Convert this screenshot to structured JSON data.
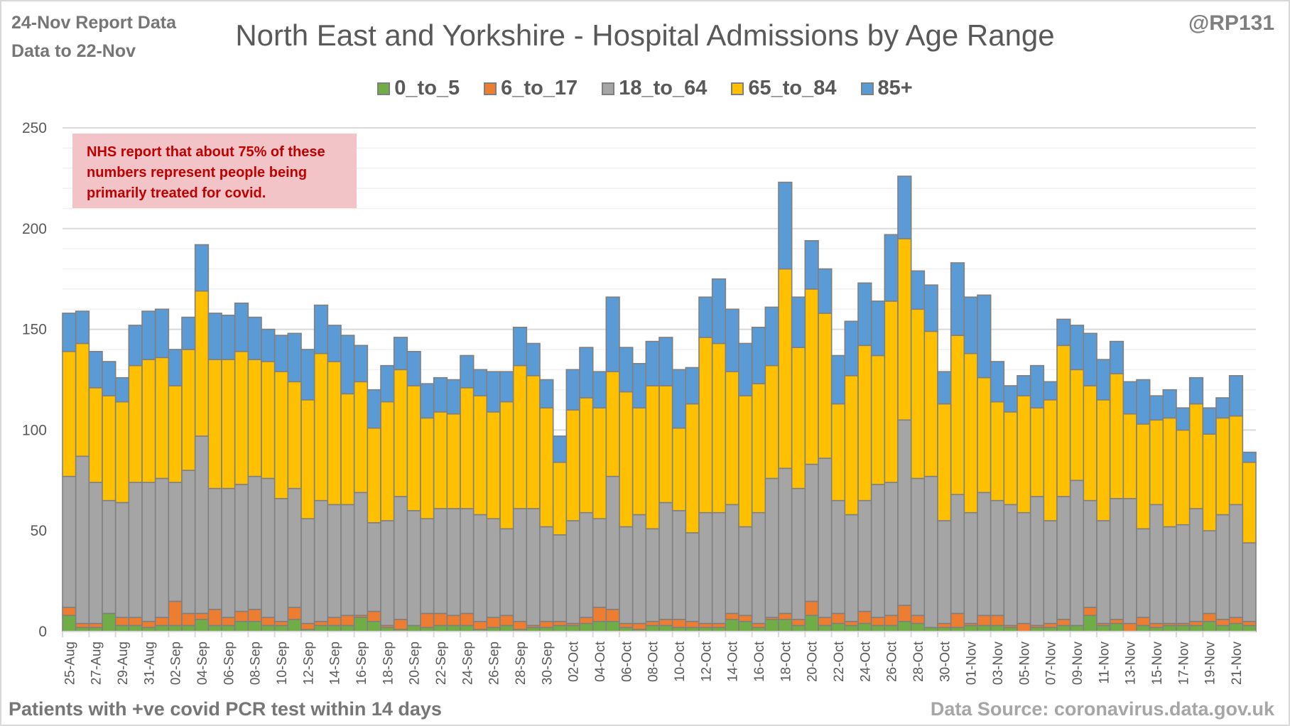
{
  "header": {
    "report_date": "24-Nov Report Data",
    "data_to": "Data to 22-Nov",
    "handle": "@RP131"
  },
  "footer": {
    "left": "Patients with  +ve covid PCR test within 14 days",
    "right": "Data Source: coronavirus.data.gov.uk"
  },
  "annotation": "NHS report that about 75% of these numbers represent people being primarily treated for covid.",
  "chart_data": {
    "type": "bar",
    "stacked": true,
    "title": "North East and Yorkshire - Hospital Admissions by Age Range",
    "xlabel": "",
    "ylabel": "",
    "ylim": [
      0,
      250
    ],
    "yticks": [
      0,
      50,
      100,
      150,
      200,
      250
    ],
    "grid": true,
    "legend_position": "top",
    "x_tick_labels": [
      "25-Aug",
      "27-Aug",
      "29-Aug",
      "31-Aug",
      "02-Sep",
      "04-Sep",
      "06-Sep",
      "08-Sep",
      "10-Sep",
      "12-Sep",
      "14-Sep",
      "16-Sep",
      "18-Sep",
      "20-Sep",
      "22-Sep",
      "24-Sep",
      "26-Sep",
      "28-Sep",
      "30-Sep",
      "02-Oct",
      "04-Oct",
      "06-Oct",
      "08-Oct",
      "10-Oct",
      "12-Oct",
      "14-Oct",
      "16-Oct",
      "18-Oct",
      "20-Oct",
      "22-Oct",
      "24-Oct",
      "26-Oct",
      "28-Oct",
      "30-Oct",
      "01-Nov",
      "03-Nov",
      "05-Nov",
      "07-Nov",
      "09-Nov",
      "11-Nov",
      "13-Nov",
      "15-Nov",
      "17-Nov",
      "19-Nov",
      "21-Nov"
    ],
    "categories": [
      "25-Aug",
      "26-Aug",
      "27-Aug",
      "28-Aug",
      "29-Aug",
      "30-Aug",
      "31-Aug",
      "01-Sep",
      "02-Sep",
      "03-Sep",
      "04-Sep",
      "05-Sep",
      "06-Sep",
      "07-Sep",
      "08-Sep",
      "09-Sep",
      "10-Sep",
      "11-Sep",
      "12-Sep",
      "13-Sep",
      "14-Sep",
      "15-Sep",
      "16-Sep",
      "17-Sep",
      "18-Sep",
      "19-Sep",
      "20-Sep",
      "21-Sep",
      "22-Sep",
      "23-Sep",
      "24-Sep",
      "25-Sep",
      "26-Sep",
      "27-Sep",
      "28-Sep",
      "29-Sep",
      "30-Sep",
      "01-Oct",
      "02-Oct",
      "03-Oct",
      "04-Oct",
      "05-Oct",
      "06-Oct",
      "07-Oct",
      "08-Oct",
      "09-Oct",
      "10-Oct",
      "11-Oct",
      "12-Oct",
      "13-Oct",
      "14-Oct",
      "15-Oct",
      "16-Oct",
      "17-Oct",
      "18-Oct",
      "19-Oct",
      "20-Oct",
      "21-Oct",
      "22-Oct",
      "23-Oct",
      "24-Oct",
      "25-Oct",
      "26-Oct",
      "27-Oct",
      "28-Oct",
      "29-Oct",
      "30-Oct",
      "31-Oct",
      "01-Nov",
      "02-Nov",
      "03-Nov",
      "04-Nov",
      "05-Nov",
      "06-Nov",
      "07-Nov",
      "08-Nov",
      "09-Nov",
      "10-Nov",
      "11-Nov",
      "12-Nov",
      "13-Nov",
      "14-Nov",
      "15-Nov",
      "16-Nov",
      "17-Nov",
      "18-Nov",
      "19-Nov",
      "20-Nov",
      "21-Nov",
      "22-Nov"
    ],
    "series": [
      {
        "name": "0_to_5",
        "color": "#70ad47",
        "values": [
          8,
          2,
          2,
          9,
          3,
          3,
          2,
          3,
          3,
          3,
          6,
          3,
          3,
          5,
          5,
          3,
          3,
          6,
          1,
          3,
          3,
          3,
          7,
          5,
          2,
          1,
          3,
          2,
          3,
          3,
          3,
          1,
          2,
          3,
          1,
          2,
          2,
          3,
          3,
          4,
          5,
          5,
          2,
          1,
          3,
          3,
          2,
          2,
          2,
          2,
          6,
          5,
          2,
          6,
          6,
          3,
          8,
          3,
          4,
          3,
          4,
          3,
          3,
          5,
          4,
          2,
          2,
          2,
          3,
          3,
          3,
          2,
          0,
          2,
          2,
          3,
          3,
          8,
          3,
          4,
          0,
          3,
          2,
          3,
          3,
          3,
          5,
          3,
          4,
          3
        ]
      },
      {
        "name": "6_to_17",
        "color": "#ed7d31",
        "values": [
          4,
          2,
          2,
          0,
          4,
          4,
          3,
          4,
          12,
          6,
          3,
          8,
          4,
          5,
          6,
          4,
          2,
          6,
          3,
          2,
          4,
          5,
          1,
          5,
          1,
          5,
          0,
          7,
          6,
          5,
          6,
          4,
          5,
          5,
          4,
          1,
          3,
          2,
          1,
          3,
          7,
          6,
          2,
          3,
          2,
          3,
          4,
          3,
          2,
          2,
          3,
          3,
          2,
          1,
          3,
          3,
          7,
          4,
          5,
          2,
          6,
          4,
          5,
          8,
          4,
          0,
          2,
          7,
          1,
          5,
          5,
          1,
          4,
          1,
          2,
          3,
          0,
          4,
          1,
          2,
          4,
          4,
          2,
          1,
          1,
          2,
          4,
          3,
          3,
          2
        ]
      },
      {
        "name": "18_to_64",
        "color": "#a5a5a5",
        "values": [
          65,
          83,
          70,
          56,
          57,
          67,
          69,
          69,
          59,
          71,
          88,
          60,
          64,
          63,
          66,
          69,
          61,
          59,
          52,
          60,
          56,
          55,
          61,
          44,
          52,
          61,
          57,
          47,
          52,
          53,
          52,
          53,
          49,
          43,
          56,
          58,
          47,
          43,
          51,
          52,
          44,
          66,
          48,
          54,
          46,
          58,
          54,
          44,
          55,
          55,
          54,
          44,
          55,
          69,
          72,
          65,
          68,
          79,
          56,
          53,
          55,
          66,
          66,
          92,
          68,
          75,
          51,
          59,
          55,
          61,
          57,
          60,
          55,
          64,
          51,
          61,
          72,
          53,
          51,
          60,
          62,
          44,
          59,
          48,
          49,
          56,
          41,
          52,
          56,
          39
        ]
      },
      {
        "name": "65_to_84",
        "color": "#ffc000",
        "values": [
          62,
          56,
          47,
          52,
          50,
          58,
          61,
          60,
          48,
          60,
          72,
          64,
          64,
          66,
          58,
          58,
          63,
          53,
          59,
          73,
          71,
          55,
          55,
          47,
          59,
          63,
          62,
          50,
          48,
          47,
          60,
          59,
          53,
          63,
          71,
          66,
          59,
          36,
          55,
          57,
          55,
          52,
          67,
          53,
          71,
          58,
          41,
          64,
          87,
          84,
          66,
          65,
          64,
          56,
          99,
          70,
          87,
          72,
          48,
          69,
          77,
          64,
          90,
          90,
          84,
          72,
          58,
          79,
          79,
          57,
          49,
          46,
          58,
          44,
          60,
          75,
          55,
          57,
          60,
          62,
          42,
          52,
          42,
          54,
          47,
          52,
          48,
          48,
          44,
          40
        ]
      },
      {
        "name": "85+",
        "color": "#5b9bd5",
        "values": [
          19,
          16,
          18,
          17,
          12,
          20,
          24,
          24,
          18,
          16,
          23,
          23,
          22,
          24,
          21,
          16,
          18,
          24,
          25,
          24,
          18,
          29,
          18,
          19,
          18,
          16,
          17,
          17,
          17,
          17,
          16,
          13,
          20,
          15,
          19,
          16,
          14,
          13,
          20,
          25,
          18,
          37,
          22,
          22,
          22,
          24,
          29,
          18,
          20,
          32,
          31,
          26,
          28,
          29,
          43,
          25,
          24,
          22,
          24,
          27,
          31,
          27,
          33,
          31,
          19,
          23,
          16,
          36,
          28,
          41,
          20,
          13,
          10,
          21,
          9,
          13,
          22,
          26,
          20,
          16,
          16,
          22,
          12,
          14,
          11,
          13,
          13,
          10,
          20,
          5
        ]
      }
    ]
  }
}
